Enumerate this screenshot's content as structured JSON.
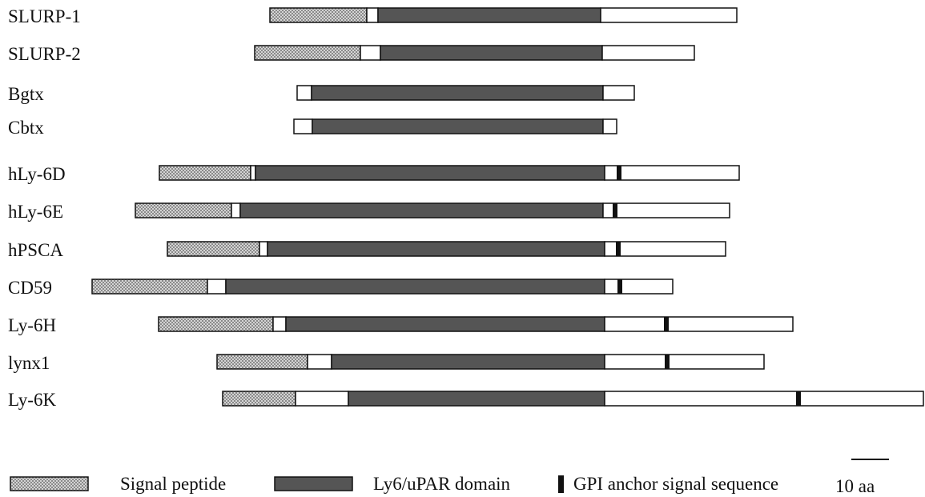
{
  "figure": {
    "colors": {
      "signal_fill": "#d4d4d4",
      "signal_check": "#8a8a8a",
      "domain_fill": "#555555",
      "outline": "#111111",
      "background": "#ffffff",
      "gpi": "#111111"
    },
    "proteins": [
      {
        "name": "SLURP-1",
        "segments": [
          [
            "signal",
            337,
            458
          ],
          [
            "plain",
            458,
            472
          ],
          [
            "domain",
            472,
            750
          ],
          [
            "plain",
            750,
            920
          ]
        ],
        "gpi": []
      },
      {
        "name": "SLURP-2",
        "segments": [
          [
            "signal",
            318,
            450
          ],
          [
            "plain",
            450,
            475
          ],
          [
            "domain",
            475,
            752
          ],
          [
            "plain",
            752,
            867
          ]
        ],
        "gpi": []
      },
      {
        "name": "Bgtx",
        "segments": [
          [
            "plain",
            371,
            389
          ],
          [
            "domain",
            389,
            753
          ],
          [
            "plain",
            753,
            792
          ]
        ],
        "gpi": []
      },
      {
        "name": "Cbtx",
        "segments": [
          [
            "plain",
            367,
            390
          ],
          [
            "domain",
            390,
            753
          ],
          [
            "plain",
            753,
            770
          ]
        ],
        "gpi": []
      },
      {
        "name": "hLy-6D",
        "segments": [
          [
            "signal",
            199,
            313
          ],
          [
            "plain",
            313,
            319
          ],
          [
            "domain",
            319,
            755
          ],
          [
            "plain",
            755,
            923
          ]
        ],
        "gpi": [
          773
        ]
      },
      {
        "name": "hLy-6E",
        "segments": [
          [
            "signal",
            169,
            289
          ],
          [
            "plain",
            289,
            300
          ],
          [
            "domain",
            300,
            753
          ],
          [
            "plain",
            753,
            911
          ]
        ],
        "gpi": [
          768
        ]
      },
      {
        "name": "hPSCA",
        "segments": [
          [
            "signal",
            209,
            324
          ],
          [
            "plain",
            324,
            334
          ],
          [
            "domain",
            334,
            755
          ],
          [
            "plain",
            755,
            906
          ]
        ],
        "gpi": [
          772
        ]
      },
      {
        "name": "CD59",
        "segments": [
          [
            "signal",
            115,
            259
          ],
          [
            "plain",
            259,
            282
          ],
          [
            "domain",
            282,
            755
          ],
          [
            "plain",
            755,
            840
          ]
        ],
        "gpi": [
          774
        ]
      },
      {
        "name": "Ly-6H",
        "segments": [
          [
            "signal",
            198,
            341
          ],
          [
            "plain",
            341,
            357
          ],
          [
            "domain",
            357,
            755
          ],
          [
            "plain",
            755,
            990
          ]
        ],
        "gpi": [
          832
        ]
      },
      {
        "name": "lynx1",
        "segments": [
          [
            "signal",
            271,
            384
          ],
          [
            "plain",
            384,
            414
          ],
          [
            "domain",
            414,
            755
          ],
          [
            "plain",
            755,
            954
          ]
        ],
        "gpi": [
          833
        ]
      },
      {
        "name": "Ly-6K",
        "segments": [
          [
            "signal",
            278,
            369
          ],
          [
            "plain",
            369,
            435
          ],
          [
            "domain",
            435,
            755
          ],
          [
            "plain",
            755,
            1153
          ]
        ],
        "gpi": [
          997
        ]
      }
    ],
    "legend": {
      "signal_label": "Signal peptide",
      "domain_label": "Ly6/uPAR domain",
      "gpi_label": "GPI anchor signal sequence"
    },
    "scale": {
      "label": "10 aa",
      "length_aa": 10
    }
  }
}
